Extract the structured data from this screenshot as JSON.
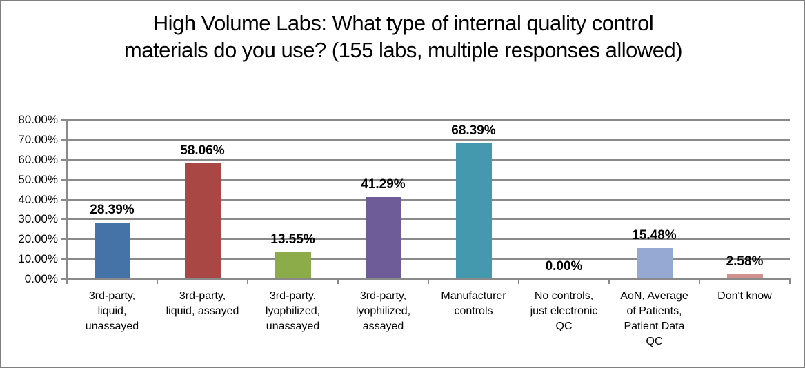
{
  "chart_data": {
    "type": "bar",
    "title": "High Volume Labs: What type of internal quality control materials do you use? (155 labs, multiple responses allowed)",
    "categories": [
      "3rd-party, liquid, unassayed",
      "3rd-party, liquid, assayed",
      "3rd-party, lyophilized, unassayed",
      "3rd-party, lyophilized, assayed",
      "Manufacturer controls",
      "No controls, just electronic QC",
      "AoN, Average of Patients, Patient Data QC",
      "Don't know"
    ],
    "category_label_lines": [
      [
        "3rd-party,",
        "liquid,",
        "unassayed"
      ],
      [
        "3rd-party,",
        "liquid, assayed"
      ],
      [
        "3rd-party,",
        "lyophilized,",
        "unassayed"
      ],
      [
        "3rd-party,",
        "lyophilized,",
        "assayed"
      ],
      [
        "Manufacturer",
        "controls"
      ],
      [
        "No controls,",
        "just electronic",
        "QC"
      ],
      [
        "AoN, Average",
        "of Patients,",
        "Patient Data",
        "QC"
      ],
      [
        "Don't know"
      ]
    ],
    "values": [
      28.39,
      58.06,
      13.55,
      41.29,
      68.39,
      0.0,
      15.48,
      2.58
    ],
    "value_labels": [
      "28.39%",
      "58.06%",
      "13.55%",
      "41.29%",
      "68.39%",
      "0.00%",
      "15.48%",
      "2.58%"
    ],
    "bar_colors": [
      "#4572A7",
      "#A84743",
      "#8CAB49",
      "#6E5C99",
      "#4599AF",
      null,
      "#95A9D2",
      "#D0918F"
    ],
    "xlabel": "",
    "ylabel": "",
    "ylim": [
      0,
      80
    ],
    "ytick_step": 10,
    "ytick_labels": [
      "0.00%",
      "10.00%",
      "20.00%",
      "30.00%",
      "40.00%",
      "50.00%",
      "60.00%",
      "70.00%",
      "80.00%"
    ],
    "grid": "horizontal",
    "legend": "none"
  },
  "style": {
    "gridline_color": "#8A8A8A",
    "axis_color": "#8A8A8A",
    "frame_border_color": "#7F7F7F",
    "background": "#FFFFFF",
    "title_color": "#000000",
    "label_color": "#000000"
  }
}
